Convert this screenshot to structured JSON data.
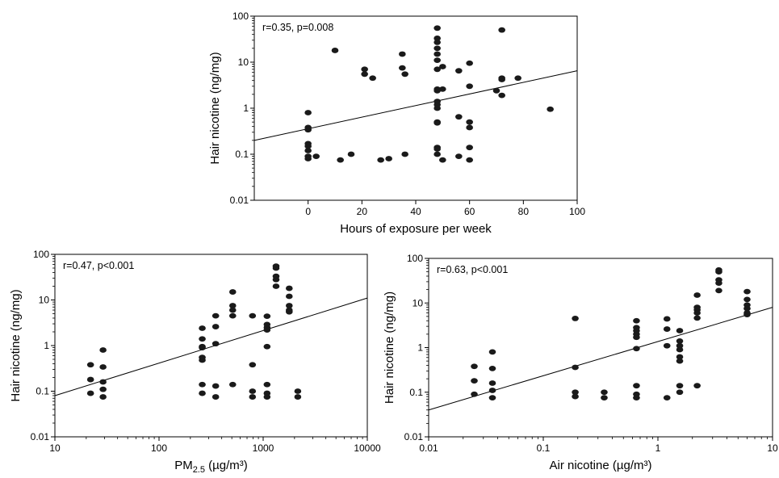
{
  "chart_data": [
    {
      "id": "hours",
      "type": "scatter",
      "xscale": "linear",
      "yscale": "log",
      "xlim": [
        -20,
        100
      ],
      "ylim": [
        0.01,
        100
      ],
      "xticks": [
        0,
        20,
        40,
        60,
        80,
        100
      ],
      "xtick_labels": [
        "0",
        "20",
        "40",
        "60",
        "80",
        "100"
      ],
      "yticks": [
        0.01,
        0.1,
        1,
        10,
        100
      ],
      "ytick_labels": [
        "0.01",
        "0.1",
        "1",
        "10",
        "100"
      ],
      "xlabel": "Hours of exposure per week",
      "xlabel_sub": "",
      "xlabel_unit": "",
      "ylabel": "Hair nicotine (ng/mg)",
      "annotation": "r=0.35, p=0.008",
      "grid": false,
      "regression": {
        "x": [
          -20,
          100
        ],
        "y": [
          0.2,
          6.5
        ]
      },
      "points": [
        [
          0,
          0.8
        ],
        [
          0,
          0.38
        ],
        [
          0,
          0.34
        ],
        [
          0,
          0.17
        ],
        [
          0,
          0.15
        ],
        [
          0,
          0.12
        ],
        [
          0,
          0.09
        ],
        [
          0,
          0.08
        ],
        [
          3,
          0.09
        ],
        [
          10,
          18
        ],
        [
          12,
          0.075
        ],
        [
          16,
          0.1
        ],
        [
          21,
          7
        ],
        [
          21,
          5.5
        ],
        [
          24,
          4.5
        ],
        [
          27,
          0.075
        ],
        [
          30,
          0.08
        ],
        [
          35,
          15
        ],
        [
          35,
          7.5
        ],
        [
          36,
          5.5
        ],
        [
          36,
          0.1
        ],
        [
          48,
          55
        ],
        [
          48,
          33
        ],
        [
          48,
          27
        ],
        [
          48,
          20
        ],
        [
          48,
          15
        ],
        [
          48,
          11
        ],
        [
          48,
          7
        ],
        [
          48,
          2.6
        ],
        [
          48,
          2.4
        ],
        [
          48,
          1.4
        ],
        [
          48,
          1.2
        ],
        [
          48,
          1.0
        ],
        [
          48,
          0.5
        ],
        [
          48,
          0.48
        ],
        [
          48,
          0.14
        ],
        [
          48,
          0.13
        ],
        [
          48,
          0.1
        ],
        [
          50,
          8
        ],
        [
          50,
          2.6
        ],
        [
          50,
          0.075
        ],
        [
          56,
          6.5
        ],
        [
          56,
          0.65
        ],
        [
          56,
          0.09
        ],
        [
          60,
          9.5
        ],
        [
          60,
          3
        ],
        [
          60,
          0.5
        ],
        [
          60,
          0.38
        ],
        [
          60,
          0.14
        ],
        [
          60,
          0.075
        ],
        [
          70,
          2.4
        ],
        [
          72,
          50
        ],
        [
          72,
          4.5
        ],
        [
          72,
          4.2
        ],
        [
          72,
          1.9
        ],
        [
          78,
          4.5
        ],
        [
          90,
          0.95
        ]
      ]
    },
    {
      "id": "pm25",
      "type": "scatter",
      "xscale": "log",
      "yscale": "log",
      "xlim": [
        10,
        10000
      ],
      "ylim": [
        0.01,
        100
      ],
      "xticks": [
        10,
        100,
        1000,
        10000
      ],
      "xtick_labels": [
        "10",
        "100",
        "1000",
        "10000"
      ],
      "yticks": [
        0.01,
        0.1,
        1,
        10,
        100
      ],
      "ytick_labels": [
        "0.01",
        "0.1",
        "1",
        "10",
        "100"
      ],
      "xlabel": "PM",
      "xlabel_sub": "2.5",
      "xlabel_unit": " (µg/m³)",
      "ylabel": "Hair nicotine (ng/mg)",
      "annotation": "r=0.47, p<0.001",
      "grid": false,
      "regression": {
        "x": [
          10,
          10000
        ],
        "y": [
          0.08,
          11
        ]
      },
      "points": [
        [
          22,
          0.38
        ],
        [
          22,
          0.18
        ],
        [
          22,
          0.09
        ],
        [
          29,
          0.8
        ],
        [
          29,
          0.34
        ],
        [
          29,
          0.16
        ],
        [
          29,
          0.11
        ],
        [
          29,
          0.075
        ],
        [
          260,
          2.4
        ],
        [
          260,
          1.4
        ],
        [
          260,
          0.95
        ],
        [
          260,
          0.9
        ],
        [
          260,
          0.55
        ],
        [
          260,
          0.48
        ],
        [
          260,
          0.14
        ],
        [
          260,
          0.09
        ],
        [
          350,
          4.5
        ],
        [
          350,
          2.6
        ],
        [
          350,
          1.1
        ],
        [
          350,
          0.13
        ],
        [
          350,
          0.075
        ],
        [
          510,
          15
        ],
        [
          510,
          7.5
        ],
        [
          510,
          6
        ],
        [
          510,
          4.5
        ],
        [
          510,
          0.14
        ],
        [
          790,
          4.5
        ],
        [
          790,
          0.38
        ],
        [
          790,
          0.1
        ],
        [
          790,
          0.075
        ],
        [
          1090,
          4.4
        ],
        [
          1090,
          2.9
        ],
        [
          1090,
          2.5
        ],
        [
          1090,
          2.2
        ],
        [
          1090,
          0.95
        ],
        [
          1090,
          0.14
        ],
        [
          1090,
          0.09
        ],
        [
          1090,
          0.075
        ],
        [
          1330,
          55
        ],
        [
          1330,
          50
        ],
        [
          1330,
          33
        ],
        [
          1330,
          28
        ],
        [
          1330,
          20
        ],
        [
          1780,
          18
        ],
        [
          1780,
          12
        ],
        [
          1780,
          7.5
        ],
        [
          1780,
          6
        ],
        [
          1780,
          5.5
        ],
        [
          2150,
          0.1
        ],
        [
          2150,
          0.075
        ]
      ]
    },
    {
      "id": "airnic",
      "type": "scatter",
      "xscale": "log",
      "yscale": "log",
      "xlim": [
        0.01,
        10
      ],
      "ylim": [
        0.01,
        100
      ],
      "xticks": [
        0.01,
        0.1,
        1,
        10
      ],
      "xtick_labels": [
        "0.01",
        "0.1",
        "1",
        "10"
      ],
      "yticks": [
        0.01,
        0.1,
        1,
        10,
        100
      ],
      "ytick_labels": [
        "0.01",
        "0.1",
        "1",
        "10",
        "100"
      ],
      "xlabel": "Air nicotine",
      "xlabel_sub": "",
      "xlabel_unit": " (µg/m³)",
      "ylabel": "Hair nicotine (ng/mg)",
      "annotation": "r=0.63, p<0.001",
      "grid": false,
      "regression": {
        "x": [
          0.01,
          10
        ],
        "y": [
          0.04,
          8
        ]
      },
      "points": [
        [
          0.025,
          0.38
        ],
        [
          0.025,
          0.18
        ],
        [
          0.025,
          0.09
        ],
        [
          0.036,
          0.8
        ],
        [
          0.036,
          0.34
        ],
        [
          0.036,
          0.16
        ],
        [
          0.036,
          0.11
        ],
        [
          0.036,
          0.075
        ],
        [
          0.19,
          4.5
        ],
        [
          0.19,
          0.36
        ],
        [
          0.19,
          0.1
        ],
        [
          0.19,
          0.08
        ],
        [
          0.34,
          0.1
        ],
        [
          0.34,
          0.075
        ],
        [
          0.65,
          4
        ],
        [
          0.65,
          2.8
        ],
        [
          0.65,
          2.4
        ],
        [
          0.65,
          2.0
        ],
        [
          0.65,
          1.7
        ],
        [
          0.65,
          0.95
        ],
        [
          0.65,
          0.14
        ],
        [
          0.65,
          0.09
        ],
        [
          0.65,
          0.075
        ],
        [
          1.2,
          4.4
        ],
        [
          1.2,
          2.6
        ],
        [
          1.2,
          1.1
        ],
        [
          1.2,
          0.075
        ],
        [
          1.55,
          2.4
        ],
        [
          1.55,
          1.4
        ],
        [
          1.55,
          1.1
        ],
        [
          1.55,
          0.9
        ],
        [
          1.55,
          0.62
        ],
        [
          1.55,
          0.5
        ],
        [
          1.55,
          0.14
        ],
        [
          1.55,
          0.1
        ],
        [
          2.2,
          15
        ],
        [
          2.2,
          8
        ],
        [
          2.2,
          7
        ],
        [
          2.2,
          6
        ],
        [
          2.2,
          4.6
        ],
        [
          2.2,
          0.14
        ],
        [
          3.4,
          55
        ],
        [
          3.4,
          50
        ],
        [
          3.4,
          33
        ],
        [
          3.4,
          28
        ],
        [
          3.4,
          19
        ],
        [
          6,
          18
        ],
        [
          6,
          12
        ],
        [
          6,
          9
        ],
        [
          6,
          7.5
        ],
        [
          6,
          6
        ],
        [
          6,
          5.5
        ]
      ]
    }
  ]
}
